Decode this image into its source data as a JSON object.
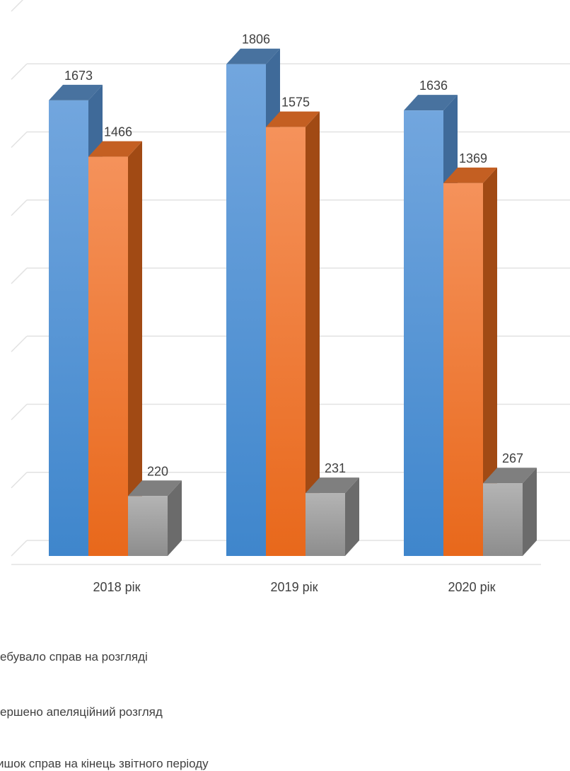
{
  "chart_data": {
    "type": "bar",
    "title": "",
    "xlabel": "",
    "ylabel": "",
    "ylim": [
      0,
      2000
    ],
    "grid": true,
    "legend_position": "bottom-left",
    "categories": [
      "2018 рік",
      "2019 рік",
      "2020 рік"
    ],
    "series": [
      {
        "name": "ебувало справ на розгляді",
        "values": [
          1673,
          1806,
          1636
        ],
        "color": "#5b9bd5"
      },
      {
        "name": "ершено апеляційний розгляд",
        "values": [
          1466,
          1575,
          1369
        ],
        "color": "#ed7d31"
      },
      {
        "name": "ишок справ на кінець звітного періоду",
        "values": [
          220,
          231,
          267
        ],
        "color": "#a5a5a5"
      }
    ]
  }
}
